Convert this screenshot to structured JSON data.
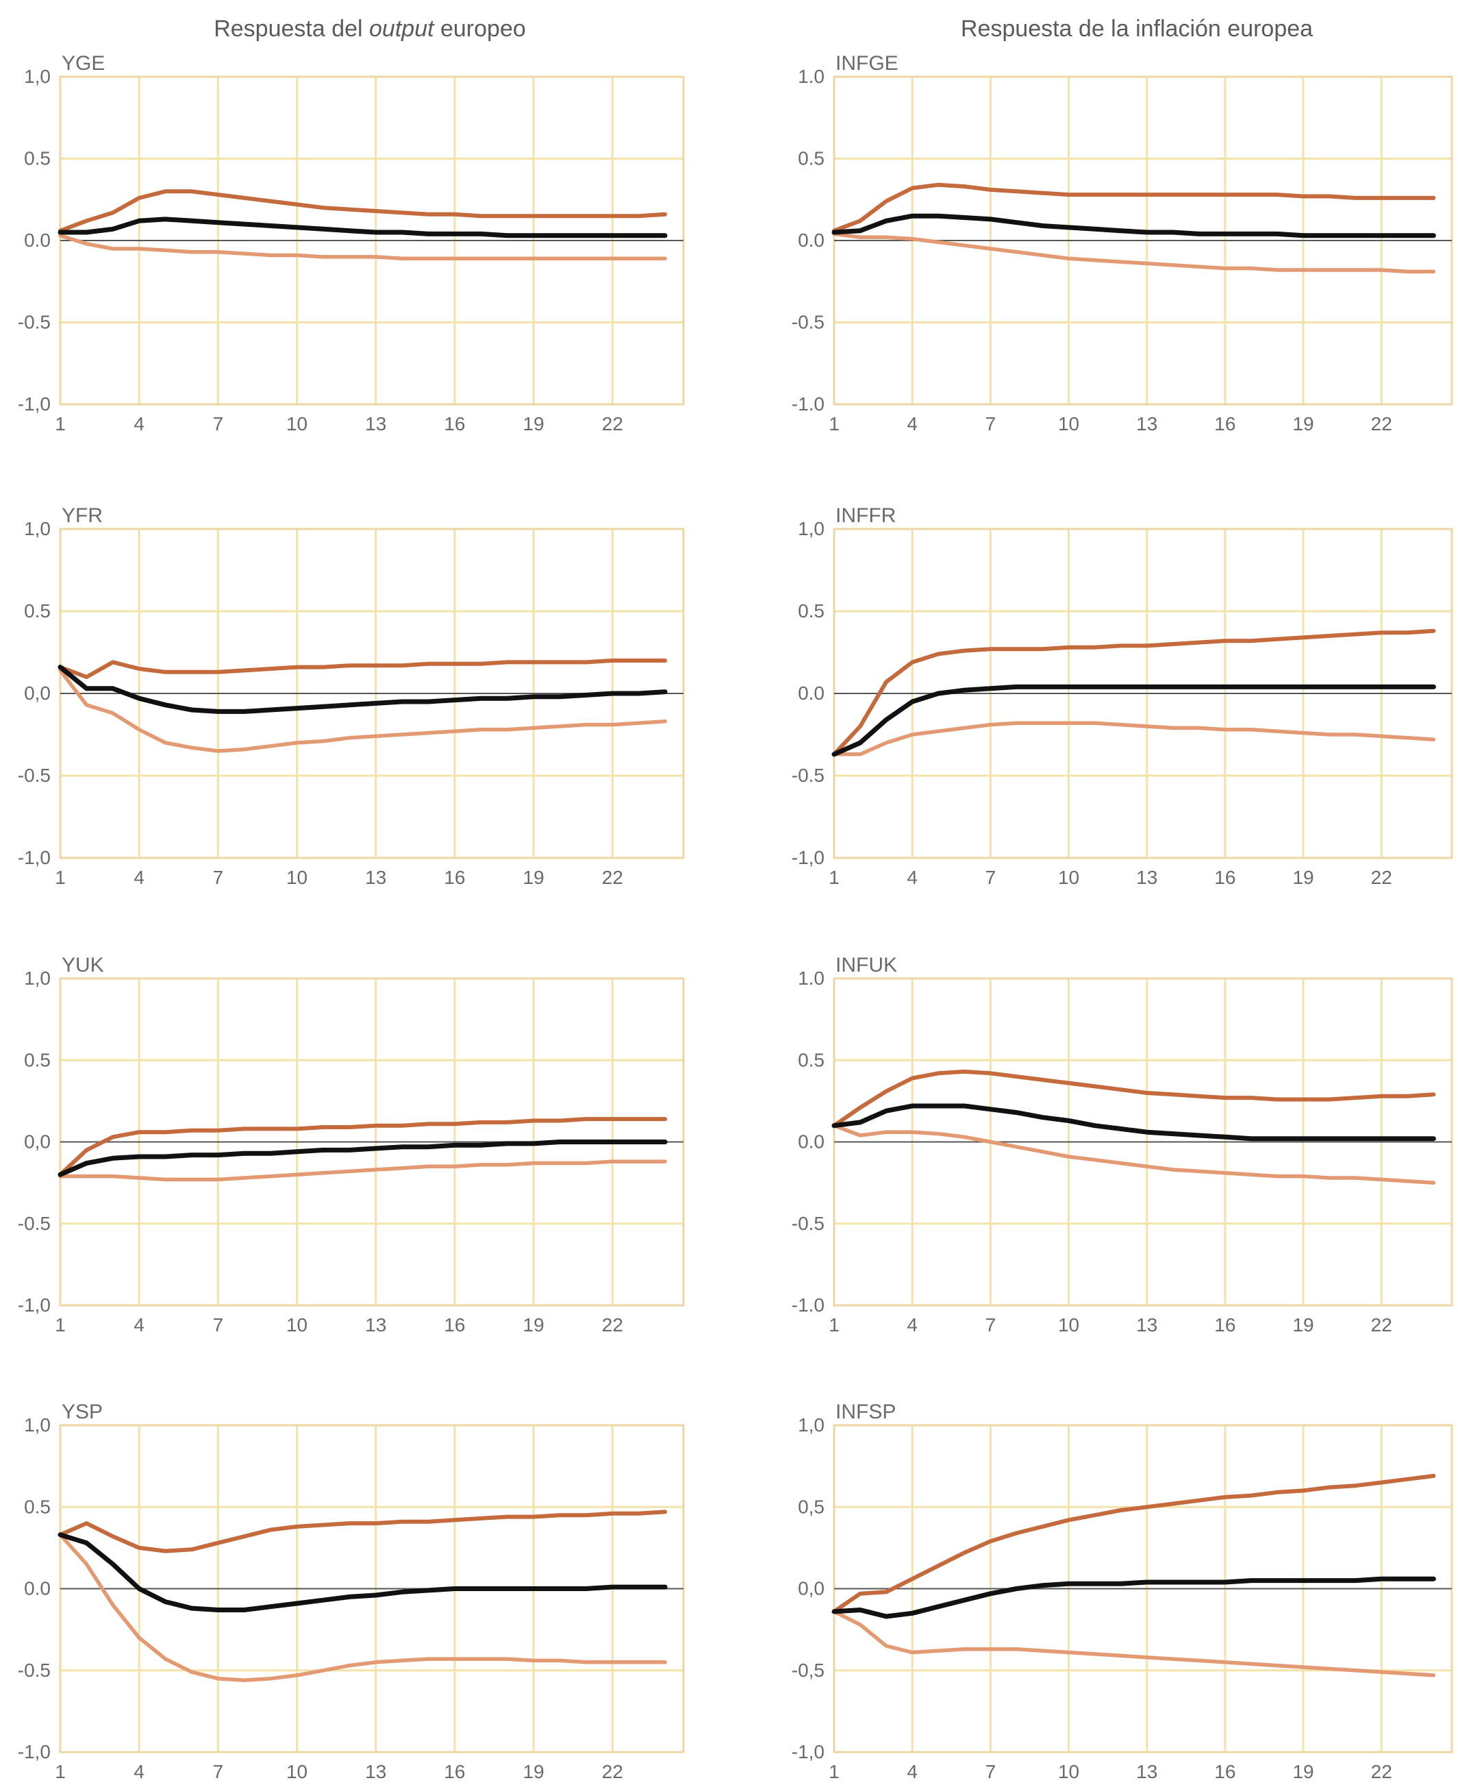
{
  "column_titles": [
    {
      "parts": [
        {
          "text": "Respuesta del ",
          "italic": false
        },
        {
          "text": "output",
          "italic": true
        },
        {
          "text": " europeo",
          "italic": false
        }
      ]
    },
    {
      "parts": [
        {
          "text": "Respuesta de la inflación europea",
          "italic": false
        }
      ]
    }
  ],
  "colors": {
    "grid": "#f3e3a8",
    "frame": "#ecd6a3",
    "zero_line": "#555555",
    "response": "#111111",
    "upper_band": "#c46a3c",
    "lower_band": "#e39a72"
  },
  "chart_data": [
    {
      "type": "line",
      "title": "YGE",
      "column": 0,
      "row": 0,
      "x": [
        1,
        2,
        3,
        4,
        5,
        6,
        7,
        8,
        9,
        10,
        11,
        12,
        13,
        14,
        15,
        16,
        17,
        18,
        19,
        20,
        21,
        22,
        23,
        24
      ],
      "xticks": [
        "1",
        "4",
        "7",
        "10",
        "13",
        "16",
        "19",
        "22"
      ],
      "yticks": [
        "1,0",
        "0.5",
        "0.0",
        "-0.5",
        "-1,0"
      ],
      "ylim": [
        -1,
        1
      ],
      "xlim": [
        1,
        24.7
      ],
      "grid": true,
      "series": [
        {
          "role": "upper",
          "values": [
            0.06,
            0.12,
            0.17,
            0.26,
            0.3,
            0.3,
            0.28,
            0.26,
            0.24,
            0.22,
            0.2,
            0.19,
            0.18,
            0.17,
            0.16,
            0.16,
            0.15,
            0.15,
            0.15,
            0.15,
            0.15,
            0.15,
            0.15,
            0.16
          ]
        },
        {
          "role": "response",
          "values": [
            0.05,
            0.05,
            0.07,
            0.12,
            0.13,
            0.12,
            0.11,
            0.1,
            0.09,
            0.08,
            0.07,
            0.06,
            0.05,
            0.05,
            0.04,
            0.04,
            0.04,
            0.03,
            0.03,
            0.03,
            0.03,
            0.03,
            0.03,
            0.03
          ]
        },
        {
          "role": "lower",
          "values": [
            0.03,
            -0.02,
            -0.05,
            -0.05,
            -0.06,
            -0.07,
            -0.07,
            -0.08,
            -0.09,
            -0.09,
            -0.1,
            -0.1,
            -0.1,
            -0.11,
            -0.11,
            -0.11,
            -0.11,
            -0.11,
            -0.11,
            -0.11,
            -0.11,
            -0.11,
            -0.11,
            -0.11
          ]
        }
      ]
    },
    {
      "type": "line",
      "title": "INFGE",
      "column": 1,
      "row": 0,
      "x": [
        1,
        2,
        3,
        4,
        5,
        6,
        7,
        8,
        9,
        10,
        11,
        12,
        13,
        14,
        15,
        16,
        17,
        18,
        19,
        20,
        21,
        22,
        23,
        24
      ],
      "xticks": [
        "1",
        "4",
        "7",
        "10",
        "13",
        "16",
        "19",
        "22"
      ],
      "yticks": [
        "1.0",
        "0.5",
        "0.0",
        "-0.5",
        "-1.0"
      ],
      "ylim": [
        -1,
        1
      ],
      "xlim": [
        1,
        24.7
      ],
      "grid": true,
      "series": [
        {
          "role": "upper",
          "values": [
            0.06,
            0.12,
            0.24,
            0.32,
            0.34,
            0.33,
            0.31,
            0.3,
            0.29,
            0.28,
            0.28,
            0.28,
            0.28,
            0.28,
            0.28,
            0.28,
            0.28,
            0.28,
            0.27,
            0.27,
            0.26,
            0.26,
            0.26,
            0.26
          ]
        },
        {
          "role": "response",
          "values": [
            0.05,
            0.06,
            0.12,
            0.15,
            0.15,
            0.14,
            0.13,
            0.11,
            0.09,
            0.08,
            0.07,
            0.06,
            0.05,
            0.05,
            0.04,
            0.04,
            0.04,
            0.04,
            0.03,
            0.03,
            0.03,
            0.03,
            0.03,
            0.03
          ]
        },
        {
          "role": "lower",
          "values": [
            0.04,
            0.02,
            0.02,
            0.01,
            -0.01,
            -0.03,
            -0.05,
            -0.07,
            -0.09,
            -0.11,
            -0.12,
            -0.13,
            -0.14,
            -0.15,
            -0.16,
            -0.17,
            -0.17,
            -0.18,
            -0.18,
            -0.18,
            -0.18,
            -0.18,
            -0.19,
            -0.19
          ]
        }
      ]
    },
    {
      "type": "line",
      "title": "YFR",
      "column": 0,
      "row": 1,
      "x": [
        1,
        2,
        3,
        4,
        5,
        6,
        7,
        8,
        9,
        10,
        11,
        12,
        13,
        14,
        15,
        16,
        17,
        18,
        19,
        20,
        21,
        22,
        23,
        24
      ],
      "xticks": [
        "1",
        "4",
        "7",
        "10",
        "13",
        "16",
        "19",
        "22"
      ],
      "yticks": [
        "1,0",
        "0.5",
        "0,0",
        "-0.5",
        "-1,0"
      ],
      "ylim": [
        -1,
        1
      ],
      "xlim": [
        1,
        24.7
      ],
      "grid": true,
      "series": [
        {
          "role": "upper",
          "values": [
            0.16,
            0.1,
            0.19,
            0.15,
            0.13,
            0.13,
            0.13,
            0.14,
            0.15,
            0.16,
            0.16,
            0.17,
            0.17,
            0.17,
            0.18,
            0.18,
            0.18,
            0.19,
            0.19,
            0.19,
            0.19,
            0.2,
            0.2,
            0.2
          ]
        },
        {
          "role": "response",
          "values": [
            0.16,
            0.03,
            0.03,
            -0.03,
            -0.07,
            -0.1,
            -0.11,
            -0.11,
            -0.1,
            -0.09,
            -0.08,
            -0.07,
            -0.06,
            -0.05,
            -0.05,
            -0.04,
            -0.03,
            -0.03,
            -0.02,
            -0.02,
            -0.01,
            0.0,
            0.0,
            0.01
          ]
        },
        {
          "role": "lower",
          "values": [
            0.14,
            -0.07,
            -0.12,
            -0.22,
            -0.3,
            -0.33,
            -0.35,
            -0.34,
            -0.32,
            -0.3,
            -0.29,
            -0.27,
            -0.26,
            -0.25,
            -0.24,
            -0.23,
            -0.22,
            -0.22,
            -0.21,
            -0.2,
            -0.19,
            -0.19,
            -0.18,
            -0.17
          ]
        }
      ]
    },
    {
      "type": "line",
      "title": "INFFR",
      "column": 1,
      "row": 1,
      "x": [
        1,
        2,
        3,
        4,
        5,
        6,
        7,
        8,
        9,
        10,
        11,
        12,
        13,
        14,
        15,
        16,
        17,
        18,
        19,
        20,
        21,
        22,
        23,
        24
      ],
      "xticks": [
        "1",
        "4",
        "7",
        "10",
        "13",
        "16",
        "19",
        "22"
      ],
      "yticks": [
        "1,0",
        "0.5",
        "0.0",
        "-0.5",
        "-1,0"
      ],
      "ylim": [
        -1,
        1
      ],
      "xlim": [
        1,
        24.7
      ],
      "grid": true,
      "series": [
        {
          "role": "upper",
          "values": [
            -0.37,
            -0.2,
            0.07,
            0.19,
            0.24,
            0.26,
            0.27,
            0.27,
            0.27,
            0.28,
            0.28,
            0.29,
            0.29,
            0.3,
            0.31,
            0.32,
            0.32,
            0.33,
            0.34,
            0.35,
            0.36,
            0.37,
            0.37,
            0.38
          ]
        },
        {
          "role": "response",
          "values": [
            -0.37,
            -0.3,
            -0.16,
            -0.05,
            0.0,
            0.02,
            0.03,
            0.04,
            0.04,
            0.04,
            0.04,
            0.04,
            0.04,
            0.04,
            0.04,
            0.04,
            0.04,
            0.04,
            0.04,
            0.04,
            0.04,
            0.04,
            0.04,
            0.04
          ]
        },
        {
          "role": "lower",
          "values": [
            -0.37,
            -0.37,
            -0.3,
            -0.25,
            -0.23,
            -0.21,
            -0.19,
            -0.18,
            -0.18,
            -0.18,
            -0.18,
            -0.19,
            -0.2,
            -0.21,
            -0.21,
            -0.22,
            -0.22,
            -0.23,
            -0.24,
            -0.25,
            -0.25,
            -0.26,
            -0.27,
            -0.28
          ]
        }
      ]
    },
    {
      "type": "line",
      "title": "YUK",
      "column": 0,
      "row": 2,
      "x": [
        1,
        2,
        3,
        4,
        5,
        6,
        7,
        8,
        9,
        10,
        11,
        12,
        13,
        14,
        15,
        16,
        17,
        18,
        19,
        20,
        21,
        22,
        23,
        24
      ],
      "xticks": [
        "1",
        "4",
        "7",
        "10",
        "13",
        "16",
        "19",
        "22"
      ],
      "yticks": [
        "1,0",
        "0.5",
        "0,0",
        "-0.5",
        "-1,0"
      ],
      "ylim": [
        -1,
        1
      ],
      "xlim": [
        1,
        24.7
      ],
      "grid": true,
      "series": [
        {
          "role": "upper",
          "values": [
            -0.2,
            -0.05,
            0.03,
            0.06,
            0.06,
            0.07,
            0.07,
            0.08,
            0.08,
            0.08,
            0.09,
            0.09,
            0.1,
            0.1,
            0.11,
            0.11,
            0.12,
            0.12,
            0.13,
            0.13,
            0.14,
            0.14,
            0.14,
            0.14
          ]
        },
        {
          "role": "response",
          "values": [
            -0.2,
            -0.13,
            -0.1,
            -0.09,
            -0.09,
            -0.08,
            -0.08,
            -0.07,
            -0.07,
            -0.06,
            -0.05,
            -0.05,
            -0.04,
            -0.03,
            -0.03,
            -0.02,
            -0.02,
            -0.01,
            -0.01,
            0.0,
            0.0,
            0.0,
            0.0,
            0.0
          ]
        },
        {
          "role": "lower",
          "values": [
            -0.21,
            -0.21,
            -0.21,
            -0.22,
            -0.23,
            -0.23,
            -0.23,
            -0.22,
            -0.21,
            -0.2,
            -0.19,
            -0.18,
            -0.17,
            -0.16,
            -0.15,
            -0.15,
            -0.14,
            -0.14,
            -0.13,
            -0.13,
            -0.13,
            -0.12,
            -0.12,
            -0.12
          ]
        }
      ]
    },
    {
      "type": "line",
      "title": "INFUK",
      "column": 1,
      "row": 2,
      "x": [
        1,
        2,
        3,
        4,
        5,
        6,
        7,
        8,
        9,
        10,
        11,
        12,
        13,
        14,
        15,
        16,
        17,
        18,
        19,
        20,
        21,
        22,
        23,
        24
      ],
      "xticks": [
        "1",
        "4",
        "7",
        "10",
        "13",
        "16",
        "19",
        "22"
      ],
      "yticks": [
        "1.0",
        "0.5",
        "0.0",
        "-0.5",
        "-1.0"
      ],
      "ylim": [
        -1,
        1
      ],
      "xlim": [
        1,
        24.7
      ],
      "grid": true,
      "series": [
        {
          "role": "upper",
          "values": [
            0.1,
            0.21,
            0.31,
            0.39,
            0.42,
            0.43,
            0.42,
            0.4,
            0.38,
            0.36,
            0.34,
            0.32,
            0.3,
            0.29,
            0.28,
            0.27,
            0.27,
            0.26,
            0.26,
            0.26,
            0.27,
            0.28,
            0.28,
            0.29
          ]
        },
        {
          "role": "response",
          "values": [
            0.1,
            0.12,
            0.19,
            0.22,
            0.22,
            0.22,
            0.2,
            0.18,
            0.15,
            0.13,
            0.1,
            0.08,
            0.06,
            0.05,
            0.04,
            0.03,
            0.02,
            0.02,
            0.02,
            0.02,
            0.02,
            0.02,
            0.02,
            0.02
          ]
        },
        {
          "role": "lower",
          "values": [
            0.1,
            0.04,
            0.06,
            0.06,
            0.05,
            0.03,
            0.0,
            -0.03,
            -0.06,
            -0.09,
            -0.11,
            -0.13,
            -0.15,
            -0.17,
            -0.18,
            -0.19,
            -0.2,
            -0.21,
            -0.21,
            -0.22,
            -0.22,
            -0.23,
            -0.24,
            -0.25
          ]
        }
      ]
    },
    {
      "type": "line",
      "title": "YSP",
      "column": 0,
      "row": 3,
      "x": [
        1,
        2,
        3,
        4,
        5,
        6,
        7,
        8,
        9,
        10,
        11,
        12,
        13,
        14,
        15,
        16,
        17,
        18,
        19,
        20,
        21,
        22,
        23,
        24
      ],
      "xticks": [
        "1",
        "4",
        "7",
        "10",
        "13",
        "16",
        "19",
        "22"
      ],
      "yticks": [
        "1,0",
        "0.5",
        "0.0",
        "-0.5",
        "-1,0"
      ],
      "ylim": [
        -1,
        1
      ],
      "xlim": [
        1,
        24.7
      ],
      "grid": true,
      "series": [
        {
          "role": "upper",
          "values": [
            0.33,
            0.4,
            0.32,
            0.25,
            0.23,
            0.24,
            0.28,
            0.32,
            0.36,
            0.38,
            0.39,
            0.4,
            0.4,
            0.41,
            0.41,
            0.42,
            0.43,
            0.44,
            0.44,
            0.45,
            0.45,
            0.46,
            0.46,
            0.47
          ]
        },
        {
          "role": "response",
          "values": [
            0.33,
            0.28,
            0.15,
            0.0,
            -0.08,
            -0.12,
            -0.13,
            -0.13,
            -0.11,
            -0.09,
            -0.07,
            -0.05,
            -0.04,
            -0.02,
            -0.01,
            0.0,
            0.0,
            0.0,
            0.0,
            0.0,
            0.0,
            0.01,
            0.01,
            0.01
          ]
        },
        {
          "role": "lower",
          "values": [
            0.33,
            0.15,
            -0.1,
            -0.3,
            -0.43,
            -0.51,
            -0.55,
            -0.56,
            -0.55,
            -0.53,
            -0.5,
            -0.47,
            -0.45,
            -0.44,
            -0.43,
            -0.43,
            -0.43,
            -0.43,
            -0.44,
            -0.44,
            -0.45,
            -0.45,
            -0.45,
            -0.45
          ]
        }
      ]
    },
    {
      "type": "line",
      "title": "INFSP",
      "column": 1,
      "row": 3,
      "x": [
        1,
        2,
        3,
        4,
        5,
        6,
        7,
        8,
        9,
        10,
        11,
        12,
        13,
        14,
        15,
        16,
        17,
        18,
        19,
        20,
        21,
        22,
        23,
        24
      ],
      "xticks": [
        "1",
        "4",
        "7",
        "10",
        "13",
        "16",
        "19",
        "22"
      ],
      "yticks": [
        "1,0",
        "0,5",
        "0,0",
        "-0,5",
        "-1,0"
      ],
      "ylim": [
        -1,
        1
      ],
      "xlim": [
        1,
        24.7
      ],
      "grid": true,
      "series": [
        {
          "role": "upper",
          "values": [
            -0.14,
            -0.03,
            -0.02,
            0.06,
            0.14,
            0.22,
            0.29,
            0.34,
            0.38,
            0.42,
            0.45,
            0.48,
            0.5,
            0.52,
            0.54,
            0.56,
            0.57,
            0.59,
            0.6,
            0.62,
            0.63,
            0.65,
            0.67,
            0.69
          ]
        },
        {
          "role": "response",
          "values": [
            -0.14,
            -0.13,
            -0.17,
            -0.15,
            -0.11,
            -0.07,
            -0.03,
            0.0,
            0.02,
            0.03,
            0.03,
            0.03,
            0.04,
            0.04,
            0.04,
            0.04,
            0.05,
            0.05,
            0.05,
            0.05,
            0.05,
            0.06,
            0.06,
            0.06
          ]
        },
        {
          "role": "lower",
          "values": [
            -0.14,
            -0.22,
            -0.35,
            -0.39,
            -0.38,
            -0.37,
            -0.37,
            -0.37,
            -0.38,
            -0.39,
            -0.4,
            -0.41,
            -0.42,
            -0.43,
            -0.44,
            -0.45,
            -0.46,
            -0.47,
            -0.48,
            -0.49,
            -0.5,
            -0.51,
            -0.52,
            -0.53
          ]
        }
      ]
    }
  ]
}
